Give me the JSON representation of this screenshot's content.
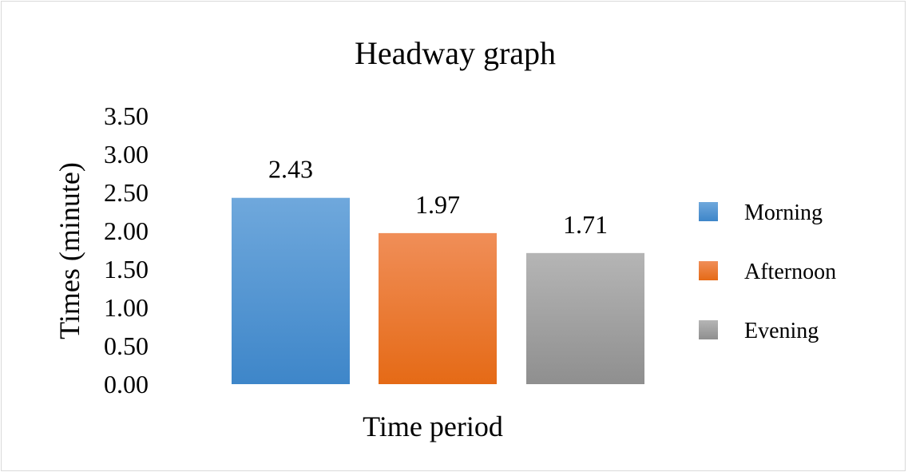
{
  "chart_data": {
    "type": "bar",
    "title": "Headway graph",
    "xlabel": "Time period",
    "ylabel": "Times (minute)",
    "ylim": [
      0,
      3.5
    ],
    "yticks": [
      "0.00",
      "0.50",
      "1.00",
      "1.50",
      "2.00",
      "2.50",
      "3.00",
      "3.50"
    ],
    "grid": false,
    "legend_position": "right",
    "series": [
      {
        "name": "Morning",
        "value": 2.43,
        "label": "2.43",
        "color": "#5b9bd5"
      },
      {
        "name": "Afternoon",
        "value": 1.97,
        "label": "1.97",
        "color": "#ed7d31"
      },
      {
        "name": "Evening",
        "value": 1.71,
        "label": "1.71",
        "color": "#a5a5a5"
      }
    ]
  }
}
